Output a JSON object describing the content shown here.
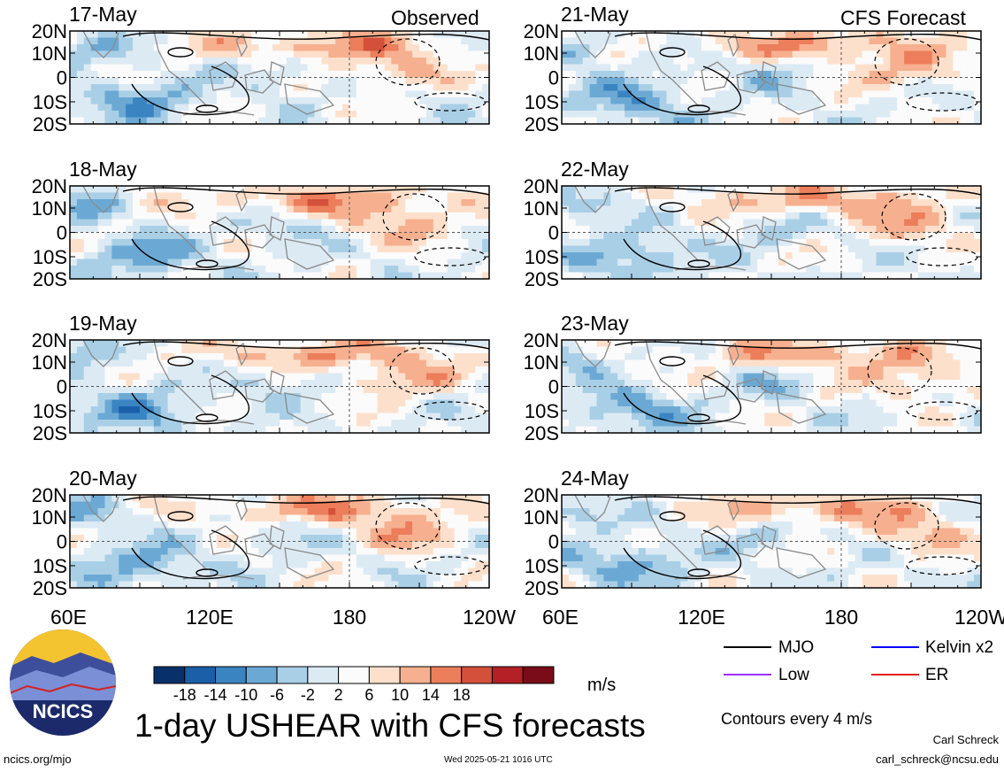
{
  "headers": {
    "observed": "Observed",
    "forecast": "CFS Forecast"
  },
  "chart_data": {
    "type": "heatmap",
    "variable_title": "1-day USHEAR with CFS forecasts",
    "units": "m/s",
    "panels": [
      {
        "date": "17-May",
        "kind": "Observed"
      },
      {
        "date": "18-May",
        "kind": "Observed"
      },
      {
        "date": "19-May",
        "kind": "Observed"
      },
      {
        "date": "20-May",
        "kind": "Observed"
      },
      {
        "date": "21-May",
        "kind": "CFS Forecast"
      },
      {
        "date": "22-May",
        "kind": "CFS Forecast"
      },
      {
        "date": "23-May",
        "kind": "CFS Forecast"
      },
      {
        "date": "24-May",
        "kind": "CFS Forecast"
      }
    ],
    "y_ticks": [
      "20N",
      "10N",
      "0",
      "10S",
      "20S"
    ],
    "y_range": [
      -20,
      20
    ],
    "x_ticks": [
      "60E",
      "120E",
      "180",
      "120W"
    ],
    "x_range": [
      60,
      240
    ],
    "colorbar": {
      "labels": [
        "-18",
        "-14",
        "-10",
        "-6",
        "-2",
        "2",
        "6",
        "10",
        "14",
        "18"
      ],
      "colors": [
        "#08306b",
        "#1a5fa8",
        "#3a84c2",
        "#6ba9d4",
        "#a9cfe6",
        "#dceaf4",
        "#fbfbfb",
        "#fde0cc",
        "#f6b08f",
        "#ec7e5b",
        "#d3503a",
        "#b42025",
        "#7a0b18"
      ]
    },
    "legend": [
      {
        "label": "MJO",
        "color": "#000000"
      },
      {
        "label": "Kelvin x2",
        "color": "#0000ff"
      },
      {
        "label": "Low",
        "color": "#9b30ff"
      },
      {
        "label": "ER",
        "color": "#e02020"
      }
    ],
    "contour_note": "Contours every 4 m/s"
  },
  "footer": {
    "url": "ncics.org/mjo",
    "timestamp": "Wed 2025-05-21 1016 UTC",
    "author": "Carl Schreck",
    "email": "carl_schreck@ncsu.edu",
    "logo_text": "NCICS"
  }
}
